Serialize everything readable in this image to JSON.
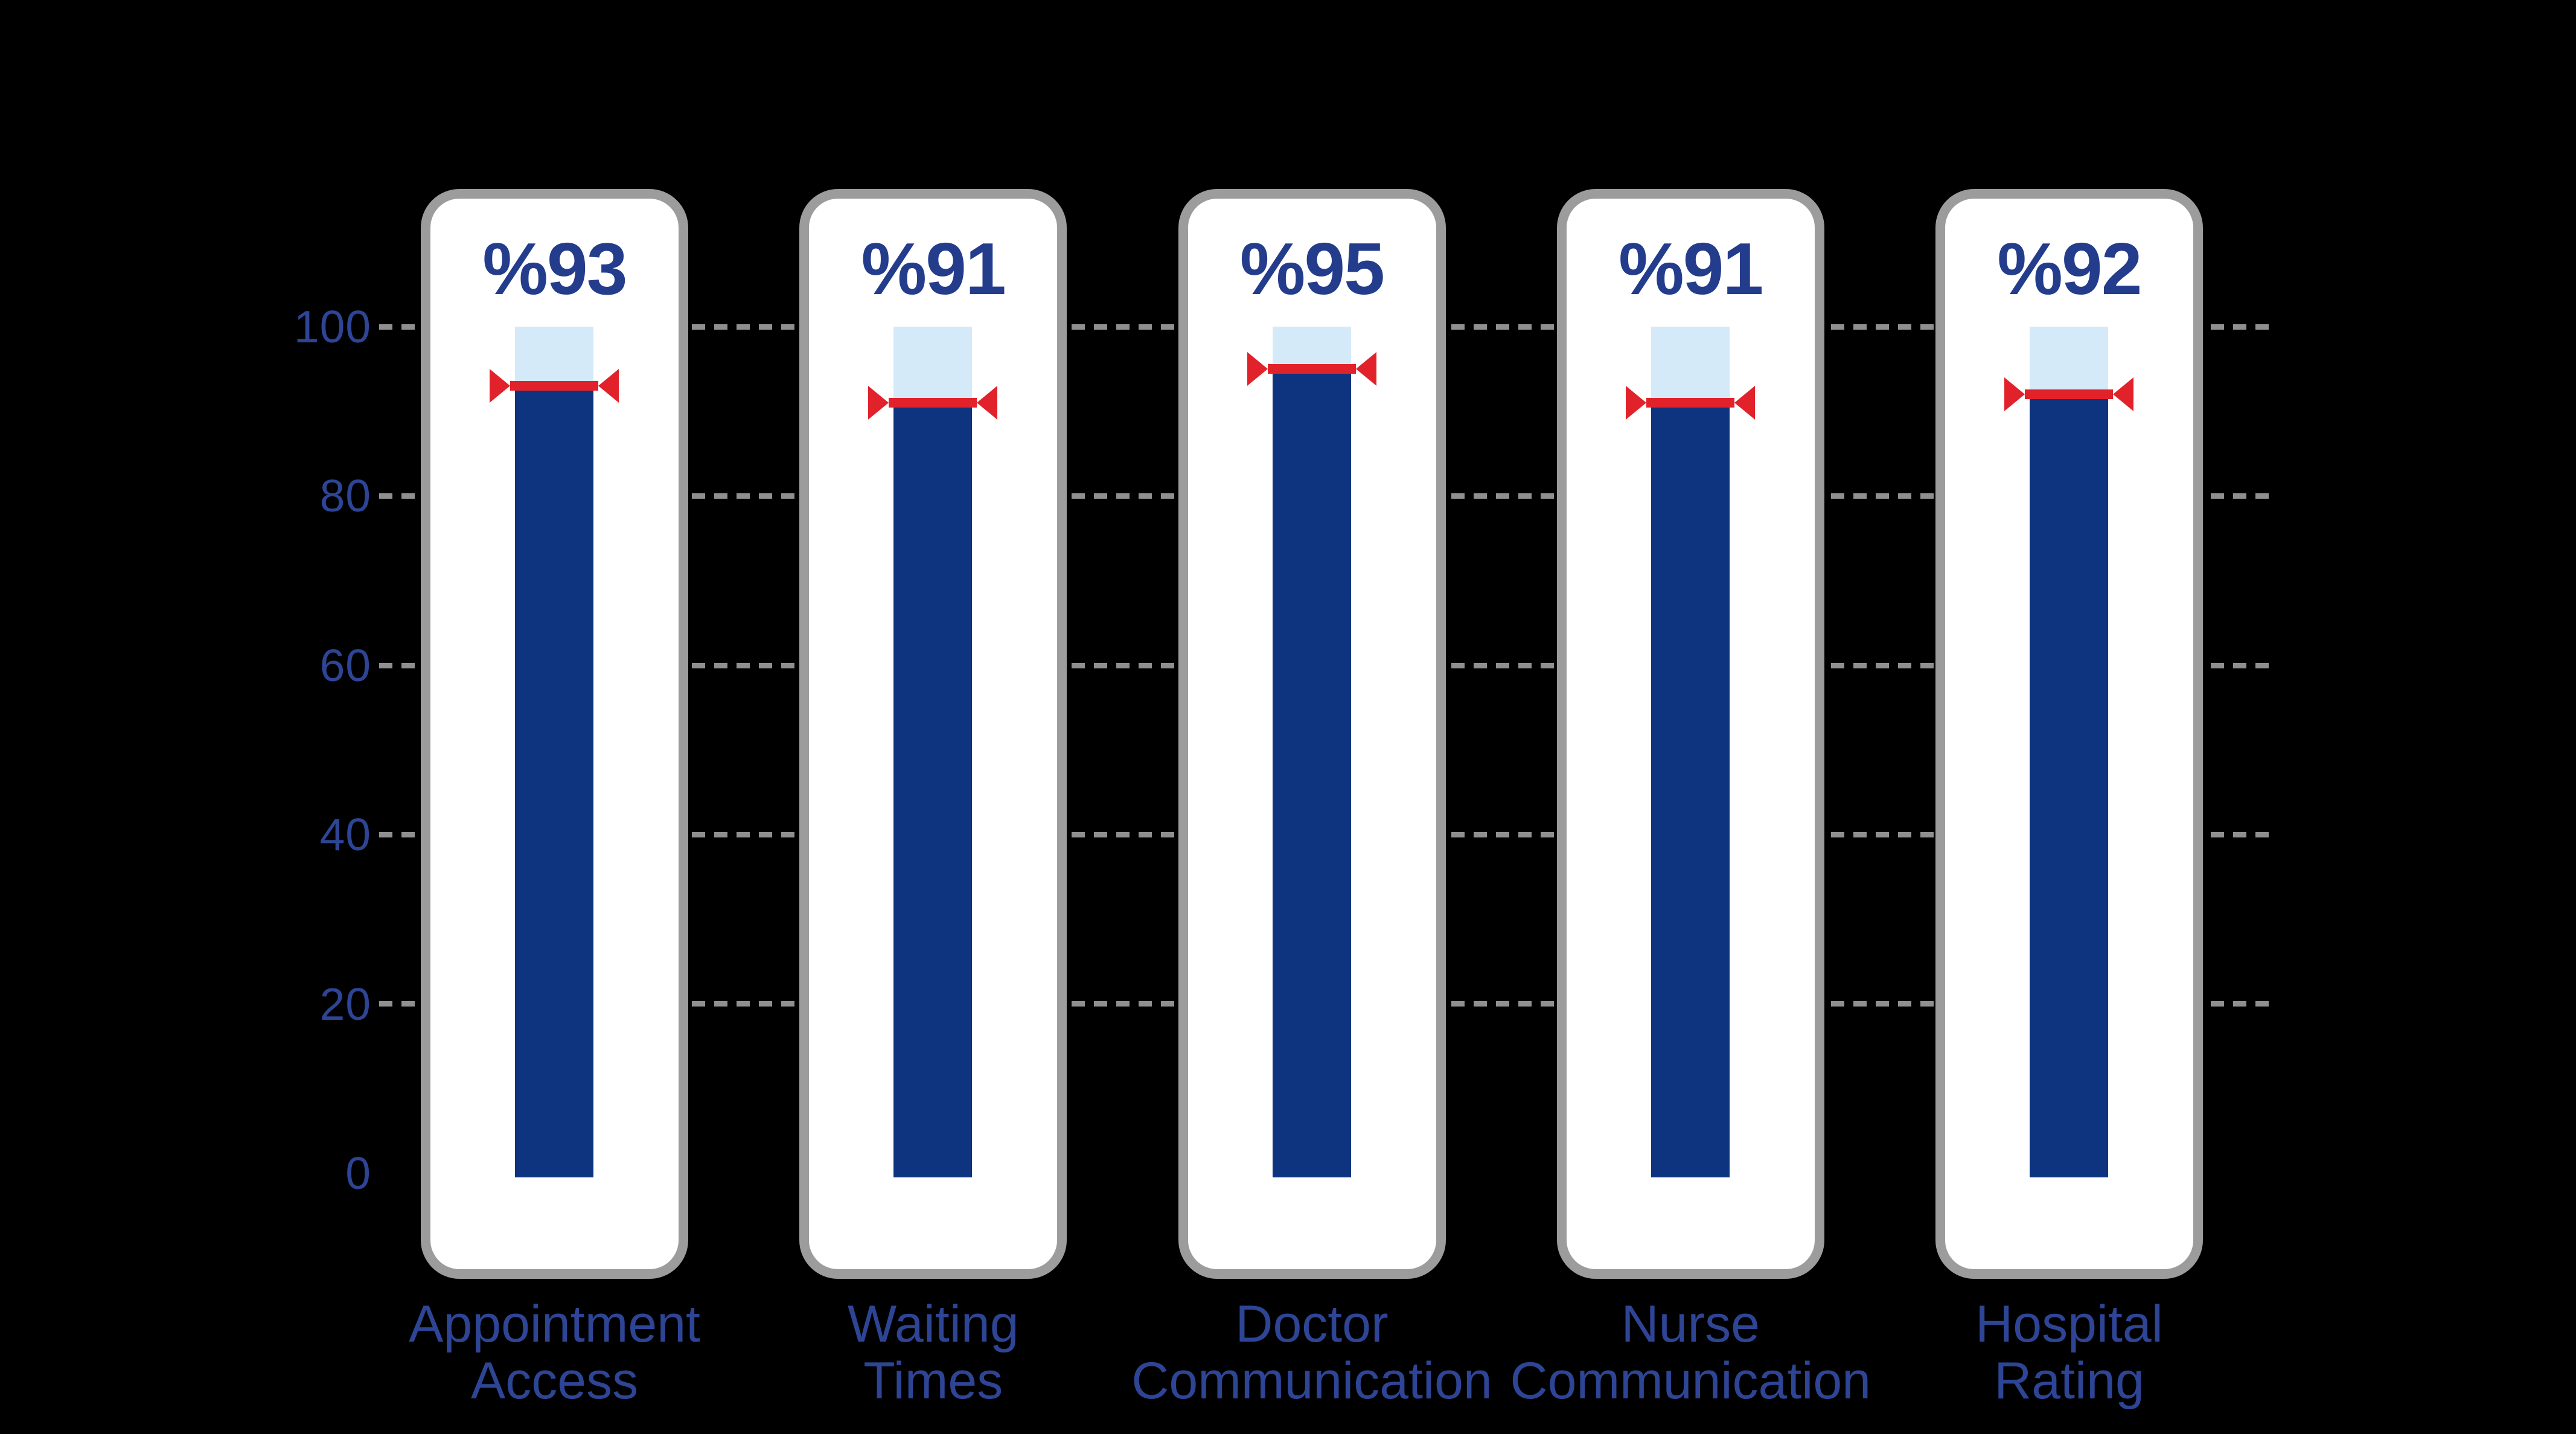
{
  "chart_data": {
    "type": "bar",
    "title": "",
    "categories": [
      "Appointment Access",
      "Waiting Times",
      "Doctor Communication",
      "Nurse Communication",
      "Hospital Rating"
    ],
    "categories_lines": [
      {
        "line1": "Appointment",
        "line2": "Access"
      },
      {
        "line1": "Waiting",
        "line2": "Times"
      },
      {
        "line1": "Doctor",
        "line2": "Communication"
      },
      {
        "line1": "Nurse",
        "line2": "Communication"
      },
      {
        "line1": "Hospital",
        "line2": "Rating"
      }
    ],
    "values": [
      93,
      91,
      95,
      91,
      92
    ],
    "value_labels": [
      "%93",
      "%91",
      "%95",
      "%91",
      "%92"
    ],
    "ylim": [
      0,
      100
    ],
    "yticks": [
      100,
      80,
      60,
      40,
      20,
      0
    ],
    "ytick_labels": [
      "100",
      "80",
      "60",
      "40",
      "20",
      "0"
    ],
    "gridlines": {
      "style": "dashed",
      "orientation": "horizontal",
      "levels": [
        100,
        80,
        60,
        40,
        20
      ]
    },
    "legend": "none",
    "bar_style": {
      "fill_segment": "dark navy column from 0 up to value",
      "remainder_segment": "light blue column from value up to 100",
      "marker": "red horizontal line with inward-pointing arrowheads at value level",
      "card": "white rounded rectangle with gray border behind each bar"
    },
    "colors": {
      "background": "#000000",
      "bar_fill": "#0E3480",
      "bar_remainder": "#D4EAF8",
      "marker_red": "#E2222B",
      "value_label_navy": "#243C8C",
      "axis_label_blue": "#2E4596",
      "card_fill": "#FFFFFF",
      "card_border": "#9C9C9C",
      "grid_gray": "#8F8F8F"
    }
  }
}
